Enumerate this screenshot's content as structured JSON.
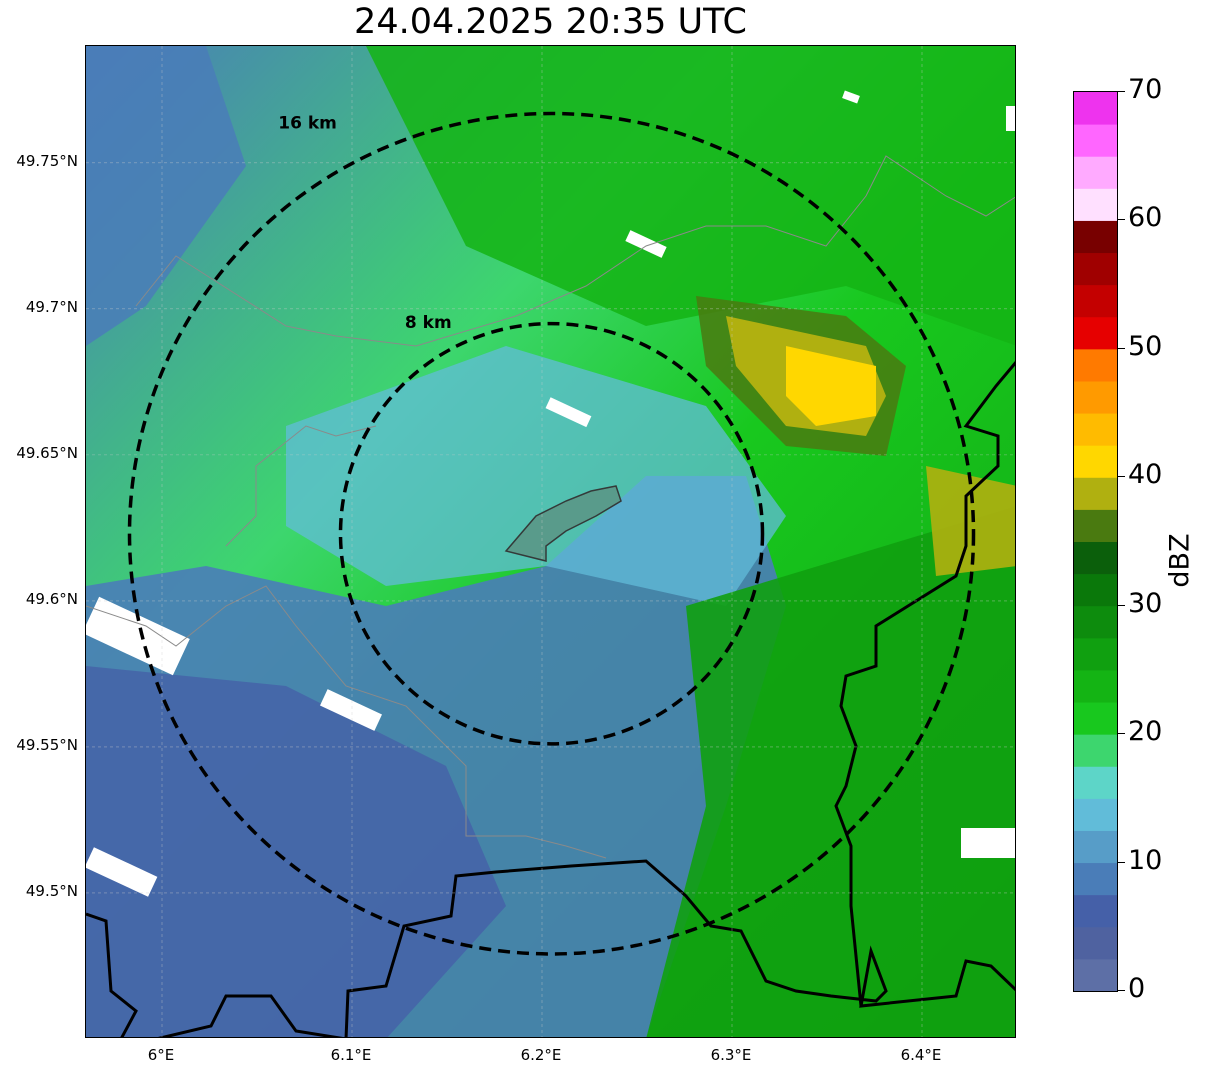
{
  "title": "24.04.2025 20:35 UTC",
  "map": {
    "extent": {
      "lon": [
        5.96,
        6.45
      ],
      "lat": [
        49.45,
        49.79
      ]
    },
    "center": {
      "lon": 6.205,
      "lat": 49.623
    },
    "range_rings": [
      {
        "label": "8 km",
        "radius_km": 8
      },
      {
        "label": "16 km",
        "radius_km": 16
      }
    ],
    "lat_ticks": [
      "49.75°N",
      "49.7°N",
      "49.65°N",
      "49.6°N",
      "49.55°N",
      "49.5°N"
    ],
    "lat_values": [
      49.75,
      49.7,
      49.65,
      49.6,
      49.55,
      49.5
    ],
    "lon_ticks": [
      "6°E",
      "6.1°E",
      "6.2°E",
      "6.3°E",
      "6.4°E"
    ],
    "lon_values": [
      6.0,
      6.1,
      6.2,
      6.3,
      6.4
    ]
  },
  "colorbar": {
    "label": "dBZ",
    "ticks": [
      "0",
      "10",
      "20",
      "30",
      "40",
      "50",
      "60",
      "70"
    ],
    "tick_values": [
      0,
      10,
      20,
      30,
      40,
      50,
      60,
      70
    ],
    "range": [
      0,
      70
    ],
    "colors": [
      "#5d6fa6",
      "#4f62a0",
      "#4560a8",
      "#4a7db8",
      "#579dc8",
      "#61bcd9",
      "#5dd5c8",
      "#3dd66e",
      "#18c81e",
      "#14b414",
      "#10a010",
      "#0d8c0d",
      "#0a780a",
      "#0b5f0b",
      "#4a7a10",
      "#b0b010",
      "#ffd700",
      "#ffbb00",
      "#ff9a00",
      "#ff7a00",
      "#e60000",
      "#c40000",
      "#a00000",
      "#780000",
      "#ffe0ff",
      "#ffaaff",
      "#ff66ff",
      "#ee33ee"
    ]
  }
}
